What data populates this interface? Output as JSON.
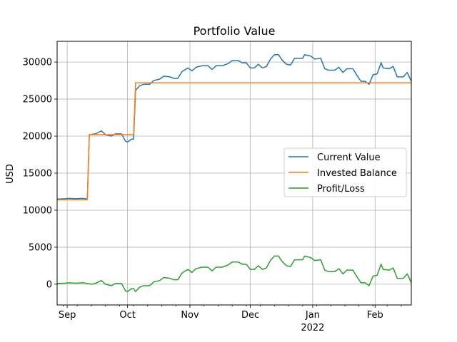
{
  "chart_data": {
    "type": "line",
    "title": "Portfolio Value",
    "xlabel": "",
    "ylabel": "USD",
    "x_range": [
      "2021-08-27",
      "2022-02-19"
    ],
    "ylim": [
      -2800,
      32800
    ],
    "grid": true,
    "legend_position": "center-right",
    "x_ticks": [
      {
        "date": "2021-09-01",
        "label": "Sep",
        "sub": ""
      },
      {
        "date": "2021-10-01",
        "label": "Oct",
        "sub": ""
      },
      {
        "date": "2021-11-01",
        "label": "Nov",
        "sub": ""
      },
      {
        "date": "2021-12-01",
        "label": "Dec",
        "sub": ""
      },
      {
        "date": "2022-01-01",
        "label": "Jan",
        "sub": "2022"
      },
      {
        "date": "2022-02-01",
        "label": "Feb",
        "sub": ""
      }
    ],
    "y_ticks": [
      0,
      5000,
      10000,
      15000,
      20000,
      25000,
      30000
    ],
    "series": [
      {
        "name": "Current Value",
        "color": "#1f77b4",
        "points": [
          [
            "2021-08-27",
            11500
          ],
          [
            "2021-08-31",
            11550
          ],
          [
            "2021-09-02",
            11600
          ],
          [
            "2021-09-05",
            11550
          ],
          [
            "2021-09-09",
            11600
          ],
          [
            "2021-09-11",
            11500
          ],
          [
            "2021-09-12",
            20200
          ],
          [
            "2021-09-15",
            20300
          ],
          [
            "2021-09-18",
            20700
          ],
          [
            "2021-09-20",
            20200
          ],
          [
            "2021-09-23",
            20000
          ],
          [
            "2021-09-25",
            20300
          ],
          [
            "2021-09-28",
            20300
          ],
          [
            "2021-09-30",
            19300
          ],
          [
            "2021-10-01",
            19200
          ],
          [
            "2021-10-03",
            19600
          ],
          [
            "2021-10-04",
            19600
          ],
          [
            "2021-10-05",
            26200
          ],
          [
            "2021-10-07",
            26800
          ],
          [
            "2021-10-09",
            27000
          ],
          [
            "2021-10-12",
            27000
          ],
          [
            "2021-10-14",
            27500
          ],
          [
            "2021-10-17",
            27700
          ],
          [
            "2021-10-19",
            28100
          ],
          [
            "2021-10-22",
            28000
          ],
          [
            "2021-10-24",
            27800
          ],
          [
            "2021-10-26",
            27800
          ],
          [
            "2021-10-28",
            28700
          ],
          [
            "2021-10-31",
            29200
          ],
          [
            "2021-11-02",
            28800
          ],
          [
            "2021-11-04",
            29300
          ],
          [
            "2021-11-07",
            29500
          ],
          [
            "2021-11-10",
            29500
          ],
          [
            "2021-11-12",
            29000
          ],
          [
            "2021-11-14",
            29500
          ],
          [
            "2021-11-17",
            29500
          ],
          [
            "2021-11-20",
            29800
          ],
          [
            "2021-11-22",
            30200
          ],
          [
            "2021-11-25",
            30200
          ],
          [
            "2021-11-27",
            29900
          ],
          [
            "2021-11-29",
            29900
          ],
          [
            "2021-12-01",
            29200
          ],
          [
            "2021-12-03",
            29200
          ],
          [
            "2021-12-05",
            29700
          ],
          [
            "2021-12-07",
            29200
          ],
          [
            "2021-12-09",
            29400
          ],
          [
            "2021-12-11",
            30400
          ],
          [
            "2021-12-13",
            31000
          ],
          [
            "2021-12-15",
            31000
          ],
          [
            "2021-12-17",
            30200
          ],
          [
            "2021-12-19",
            29700
          ],
          [
            "2021-12-21",
            29600
          ],
          [
            "2021-12-23",
            30500
          ],
          [
            "2021-12-25",
            30500
          ],
          [
            "2021-12-27",
            30500
          ],
          [
            "2021-12-28",
            31000
          ],
          [
            "2021-12-31",
            30800
          ],
          [
            "2022-01-02",
            30400
          ],
          [
            "2022-01-05",
            30500
          ],
          [
            "2022-01-07",
            29100
          ],
          [
            "2022-01-09",
            28900
          ],
          [
            "2022-01-12",
            28900
          ],
          [
            "2022-01-14",
            29300
          ],
          [
            "2022-01-16",
            28600
          ],
          [
            "2022-01-18",
            29100
          ],
          [
            "2022-01-21",
            29100
          ],
          [
            "2022-01-23",
            28200
          ],
          [
            "2022-01-25",
            27400
          ],
          [
            "2022-01-27",
            27400
          ],
          [
            "2022-01-29",
            27000
          ],
          [
            "2022-01-31",
            28300
          ],
          [
            "2022-02-02",
            28400
          ],
          [
            "2022-02-04",
            29900
          ],
          [
            "2022-02-05",
            29200
          ],
          [
            "2022-02-08",
            29100
          ],
          [
            "2022-02-10",
            29400
          ],
          [
            "2022-02-12",
            28000
          ],
          [
            "2022-02-15",
            28000
          ],
          [
            "2022-02-17",
            28600
          ],
          [
            "2022-02-19",
            27400
          ]
        ]
      },
      {
        "name": "Invested Balance",
        "color": "#ff7f0e",
        "points": [
          [
            "2021-08-27",
            11400
          ],
          [
            "2021-09-11",
            11400
          ],
          [
            "2021-09-12",
            20200
          ],
          [
            "2021-10-04",
            20200
          ],
          [
            "2021-10-05",
            27200
          ],
          [
            "2022-02-19",
            27200
          ]
        ]
      },
      {
        "name": "Profit/Loss",
        "color": "#2ca02c",
        "points": [
          [
            "2021-08-27",
            100
          ],
          [
            "2021-08-31",
            150
          ],
          [
            "2021-09-02",
            200
          ],
          [
            "2021-09-05",
            150
          ],
          [
            "2021-09-09",
            200
          ],
          [
            "2021-09-11",
            100
          ],
          [
            "2021-09-13",
            0
          ],
          [
            "2021-09-15",
            100
          ],
          [
            "2021-09-18",
            500
          ],
          [
            "2021-09-20",
            0
          ],
          [
            "2021-09-23",
            -200
          ],
          [
            "2021-09-25",
            100
          ],
          [
            "2021-09-28",
            100
          ],
          [
            "2021-09-30",
            -900
          ],
          [
            "2021-10-01",
            -1000
          ],
          [
            "2021-10-03",
            -600
          ],
          [
            "2021-10-04",
            -600
          ],
          [
            "2021-10-05",
            -1000
          ],
          [
            "2021-10-07",
            -400
          ],
          [
            "2021-10-09",
            -200
          ],
          [
            "2021-10-12",
            -200
          ],
          [
            "2021-10-14",
            300
          ],
          [
            "2021-10-17",
            500
          ],
          [
            "2021-10-19",
            900
          ],
          [
            "2021-10-22",
            800
          ],
          [
            "2021-10-24",
            600
          ],
          [
            "2021-10-26",
            600
          ],
          [
            "2021-10-28",
            1500
          ],
          [
            "2021-10-31",
            2000
          ],
          [
            "2021-11-02",
            1600
          ],
          [
            "2021-11-04",
            2100
          ],
          [
            "2021-11-07",
            2300
          ],
          [
            "2021-11-10",
            2300
          ],
          [
            "2021-11-12",
            1800
          ],
          [
            "2021-11-14",
            2300
          ],
          [
            "2021-11-17",
            2300
          ],
          [
            "2021-11-20",
            2600
          ],
          [
            "2021-11-22",
            3000
          ],
          [
            "2021-11-25",
            3000
          ],
          [
            "2021-11-27",
            2700
          ],
          [
            "2021-11-29",
            2700
          ],
          [
            "2021-12-01",
            2000
          ],
          [
            "2021-12-03",
            2000
          ],
          [
            "2021-12-05",
            2500
          ],
          [
            "2021-12-07",
            2000
          ],
          [
            "2021-12-09",
            2200
          ],
          [
            "2021-12-11",
            3200
          ],
          [
            "2021-12-13",
            3800
          ],
          [
            "2021-12-15",
            3800
          ],
          [
            "2021-12-17",
            3000
          ],
          [
            "2021-12-19",
            2500
          ],
          [
            "2021-12-21",
            2400
          ],
          [
            "2021-12-23",
            3300
          ],
          [
            "2021-12-25",
            3300
          ],
          [
            "2021-12-27",
            3300
          ],
          [
            "2021-12-28",
            3800
          ],
          [
            "2021-12-31",
            3600
          ],
          [
            "2022-01-02",
            3200
          ],
          [
            "2022-01-05",
            3300
          ],
          [
            "2022-01-07",
            1900
          ],
          [
            "2022-01-09",
            1700
          ],
          [
            "2022-01-12",
            1700
          ],
          [
            "2022-01-14",
            2100
          ],
          [
            "2022-01-16",
            1400
          ],
          [
            "2022-01-18",
            1900
          ],
          [
            "2022-01-21",
            1900
          ],
          [
            "2022-01-23",
            1000
          ],
          [
            "2022-01-25",
            200
          ],
          [
            "2022-01-27",
            200
          ],
          [
            "2022-01-29",
            -200
          ],
          [
            "2022-01-31",
            1100
          ],
          [
            "2022-02-02",
            1200
          ],
          [
            "2022-02-04",
            2700
          ],
          [
            "2022-02-05",
            2000
          ],
          [
            "2022-02-08",
            1900
          ],
          [
            "2022-02-10",
            2200
          ],
          [
            "2022-02-12",
            800
          ],
          [
            "2022-02-15",
            800
          ],
          [
            "2022-02-17",
            1400
          ],
          [
            "2022-02-19",
            200
          ]
        ]
      }
    ]
  }
}
